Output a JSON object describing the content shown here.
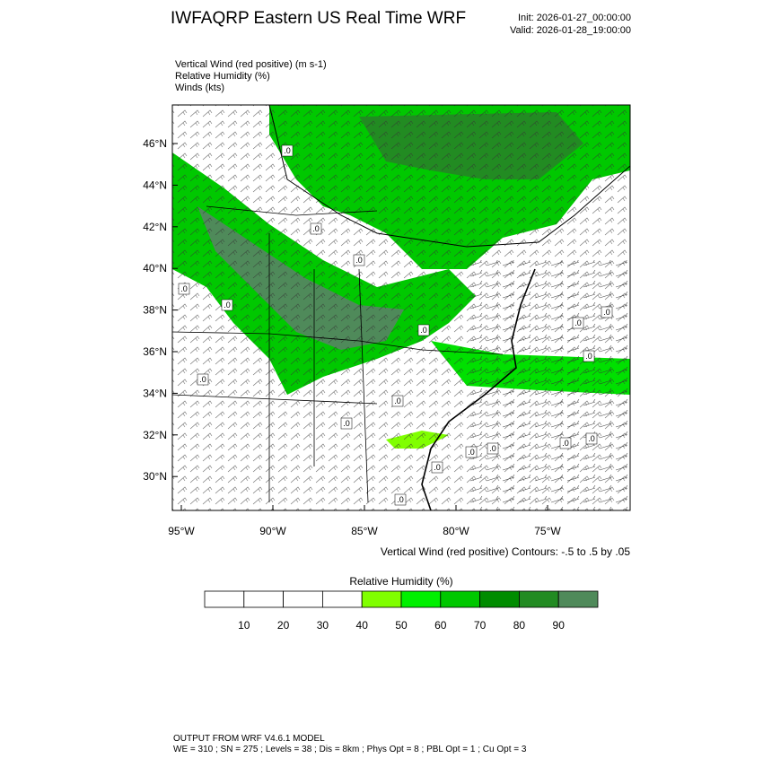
{
  "header": {
    "title": "IWFAQRP Eastern US Real Time WRF",
    "init": "Init: 2026-01-27_00:00:00",
    "valid": "Valid: 2026-01-28_19:00:00"
  },
  "fields": [
    "Vertical Wind (red positive)   (m s-1)",
    "Relative Humidity   (%)",
    "Winds   (kts)"
  ],
  "map": {
    "lat_labels": [
      "46°N",
      "44°N",
      "42°N",
      "40°N",
      "38°N",
      "36°N",
      "34°N",
      "32°N",
      "30°N"
    ],
    "lon_labels": [
      "95°W",
      "90°W",
      "85°W",
      "80°W",
      "75°W"
    ],
    "contour_labels": [
      ".0",
      ".0",
      ".0",
      ".0",
      ".0",
      ".0",
      ".0",
      ".0",
      ".0",
      ".0",
      ".0",
      ".0",
      ".0",
      ".0",
      ".0",
      ".0",
      ".0",
      ".0"
    ],
    "contour_note": "Vertical Wind (red positive) Contours: -.5 to .5 by .05"
  },
  "colorbar": {
    "title": "Relative Humidity  (%)",
    "labels": [
      "10",
      "20",
      "30",
      "40",
      "50",
      "60",
      "70",
      "80",
      "90"
    ],
    "colors": [
      "#ffffff",
      "#ffffff",
      "#ffffff",
      "#ffffff",
      "#80ff00",
      "#00f000",
      "#00c800",
      "#008c00",
      "#228b22",
      "#4f8a5a"
    ]
  },
  "footer": {
    "model": "OUTPUT FROM WRF V4.6.1 MODEL",
    "settings": "WE = 310 ; SN = 275 ; Levels = 38 ; Dis = 8km ; Phys Opt = 8 ; PBL Opt = 1 ; Cu Opt = 3"
  }
}
